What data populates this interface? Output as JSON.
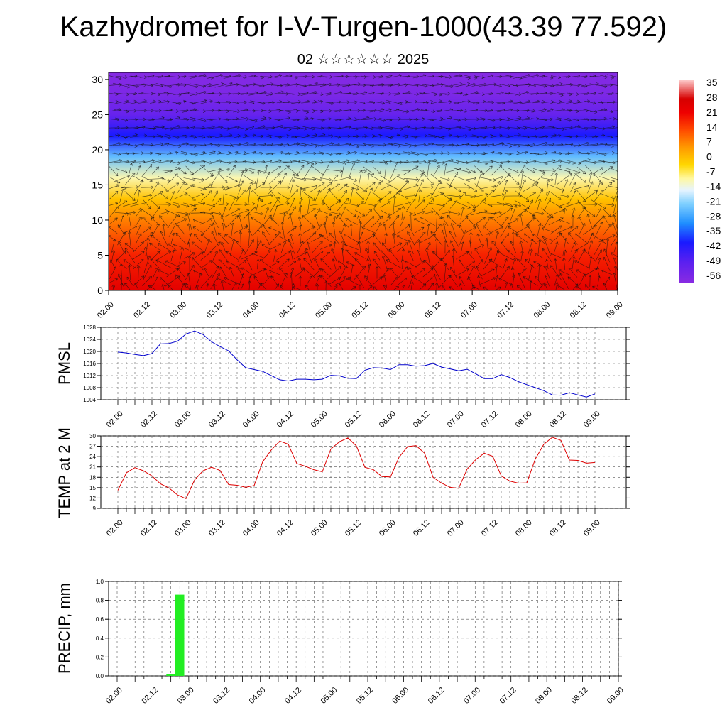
{
  "header": {
    "title": "Kazhydromet for I-V-Turgen-1000(43.39 77.592)",
    "subtitle": "02 ☆☆☆☆☆☆ 2025"
  },
  "chart_data": [
    {
      "type": "heatmap",
      "name": "height-time cross-section",
      "x_tick_labels": [
        "02.00",
        "02.12",
        "03.00",
        "03.12",
        "04.00",
        "04.12",
        "05.00",
        "05.12",
        "06.00",
        "06.12",
        "07.00",
        "07.12",
        "08.00",
        "08.12",
        "09.00"
      ],
      "y_ticks": [
        0,
        5,
        10,
        15,
        20,
        25,
        30
      ],
      "ylim": [
        0,
        31
      ],
      "colorbar": {
        "labels": [
          "35",
          "28",
          "21",
          "14",
          "7",
          "0",
          "-7",
          "-14",
          "-21",
          "-28",
          "-35",
          "-42",
          "-49",
          "-56"
        ],
        "values": [
          35,
          28,
          21,
          14,
          7,
          0,
          -7,
          -14,
          -21,
          -28,
          -35,
          -42,
          -49,
          -56
        ],
        "stops": [
          {
            "v": -63,
            "c": "#8a2be2"
          },
          {
            "v": -52,
            "c": "#5a20f0"
          },
          {
            "v": -42,
            "c": "#1a1aff"
          },
          {
            "v": -32,
            "c": "#1f8fff"
          },
          {
            "v": -22,
            "c": "#7fd0ff"
          },
          {
            "v": -15,
            "c": "#e6f4ff"
          },
          {
            "v": -9,
            "c": "#fff8a0"
          },
          {
            "v": -2,
            "c": "#ffd700"
          },
          {
            "v": 7,
            "c": "#ff9a00"
          },
          {
            "v": 16,
            "c": "#ff4a00"
          },
          {
            "v": 25,
            "c": "#ee0000"
          },
          {
            "v": 32,
            "c": "#d60000"
          },
          {
            "v": 42,
            "c": "#ffd0d0"
          }
        ]
      },
      "temperature_profile": [
        {
          "level": 0,
          "value": 28
        },
        {
          "level": 5,
          "value": 21
        },
        {
          "level": 10,
          "value": 10
        },
        {
          "level": 13,
          "value": 1
        },
        {
          "level": 16,
          "value": -10
        },
        {
          "level": 19,
          "value": -25
        },
        {
          "level": 22,
          "value": -42
        },
        {
          "level": 25,
          "value": -55
        },
        {
          "level": 28,
          "value": -60
        },
        {
          "level": 31,
          "value": -62
        }
      ],
      "wind_vectors": "shown"
    },
    {
      "type": "line",
      "ylabel": "PMSL",
      "ylim": [
        1004,
        1028
      ],
      "y_ticks": [
        1004,
        1008,
        1012,
        1016,
        1020,
        1024,
        1028
      ],
      "x_tick_labels": [
        "02.00",
        "02.12",
        "03.00",
        "03.12",
        "04.00",
        "04.12",
        "05.00",
        "05.12",
        "06.00",
        "06.12",
        "07.00",
        "07.12",
        "08.00",
        "08.12",
        "09.00"
      ],
      "color": "#0000cc",
      "values": [
        1019.8,
        1019.5,
        1019.0,
        1018.6,
        1019.3,
        1022.5,
        1022.6,
        1023.4,
        1025.8,
        1026.8,
        1025.6,
        1023.2,
        1021.6,
        1020.2,
        1017.2,
        1014.6,
        1014.0,
        1013.4,
        1012.0,
        1010.6,
        1010.2,
        1010.8,
        1010.8,
        1010.6,
        1010.8,
        1012.1,
        1011.9,
        1011.1,
        1011.0,
        1013.8,
        1014.6,
        1014.5,
        1014.0,
        1015.6,
        1015.6,
        1015.1,
        1015.3,
        1016.0,
        1014.8,
        1014.2,
        1013.6,
        1014.1,
        1012.6,
        1011.0,
        1011.0,
        1012.3,
        1011.4,
        1010.0,
        1009.0,
        1008.0,
        1007.0,
        1005.6,
        1005.5,
        1006.3,
        1005.6,
        1004.9,
        1005.9
      ]
    },
    {
      "type": "line",
      "ylabel": "TEMP at 2 M",
      "ylim": [
        9,
        30
      ],
      "y_ticks": [
        9,
        12,
        15,
        18,
        21,
        24,
        27,
        30
      ],
      "x_tick_labels": [
        "02.00",
        "02.12",
        "03.00",
        "03.12",
        "04.00",
        "04.12",
        "05.00",
        "05.12",
        "06.00",
        "06.12",
        "07.00",
        "07.12",
        "08.00",
        "08.12",
        "09.00"
      ],
      "color": "#dd0000",
      "values": [
        14.2,
        19.3,
        20.8,
        19.9,
        18.4,
        16.1,
        14.9,
        12.9,
        11.8,
        17.2,
        19.9,
        20.9,
        20.0,
        15.9,
        15.7,
        15.1,
        15.6,
        22.5,
        25.9,
        28.5,
        27.6,
        22.0,
        21.2,
        20.2,
        19.6,
        26.2,
        28.3,
        29.4,
        27.1,
        20.9,
        20.2,
        18.2,
        18.1,
        23.8,
        26.9,
        27.2,
        25.0,
        18.0,
        16.3,
        15.1,
        14.8,
        20.4,
        23.1,
        25.0,
        24.1,
        18.4,
        16.9,
        16.3,
        16.4,
        23.3,
        27.6,
        29.6,
        28.7,
        23.0,
        22.9,
        22.1,
        22.3
      ]
    },
    {
      "type": "bar",
      "ylabel": "PRECIP, mm",
      "ylim": [
        0,
        1.0
      ],
      "y_ticks": [
        "0.0",
        "0.2",
        "0.4",
        "0.6",
        "0.8",
        "1.0"
      ],
      "x_tick_labels": [
        "02.00",
        "02.12",
        "03.00",
        "03.12",
        "04.00",
        "04.12",
        "05.00",
        "05.12",
        "06.00",
        "06.12",
        "07.00",
        "07.12",
        "08.00",
        "08.12",
        "09.00"
      ],
      "color": "#22ee22",
      "bars": [
        {
          "step": 6,
          "value": 0.02
        },
        {
          "step": 7,
          "value": 0.86
        }
      ]
    }
  ]
}
